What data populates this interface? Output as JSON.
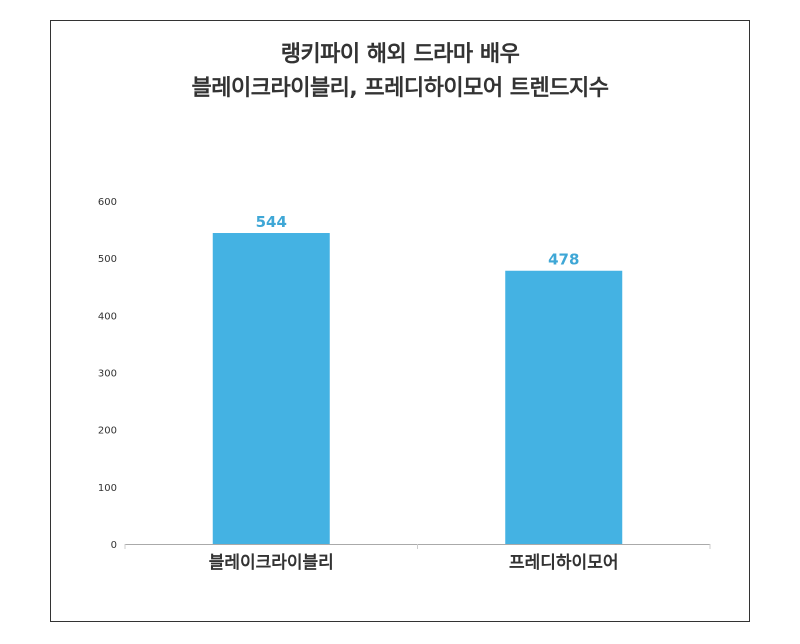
{
  "chart_data": {
    "type": "bar",
    "title_lines": [
      "랭키파이 해외 드라마 배우",
      "블레이크라이블리, 프레디하이모어 트렌드지수"
    ],
    "categories": [
      "블레이크라이블리",
      "프레디하이모어"
    ],
    "values": [
      544,
      478
    ],
    "ylim": [
      0,
      600
    ],
    "yticks": [
      0,
      100,
      200,
      300,
      400,
      500,
      600
    ],
    "xlabel": "",
    "ylabel": "",
    "grid": false,
    "bar_color": "#44b2e3",
    "label_color": "#3fa7d6"
  }
}
